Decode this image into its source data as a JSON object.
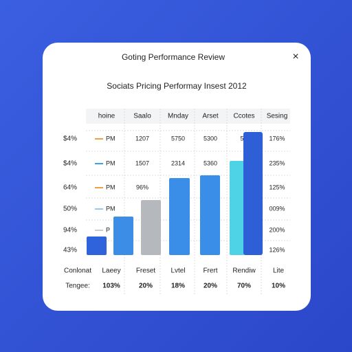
{
  "dialog": {
    "title": "Goting Performance Review",
    "close": "×",
    "subtitle": "Sociats Pricing Performay Insest 2012"
  },
  "table": {
    "header": [
      "hoine",
      "Saalo",
      "Mnday",
      "Arset",
      "Ccotes",
      "Sesing"
    ],
    "rows": [
      {
        "label": "$4%",
        "cells": [
          "PM",
          "1207",
          "5750",
          "5300",
          "5",
          "176%"
        ]
      },
      {
        "label": "$4%",
        "cells": [
          "PM",
          "1507",
          "2314",
          "5360",
          "",
          "235%"
        ]
      },
      {
        "label": "64%",
        "cells": [
          "PM",
          "96%",
          "",
          "",
          "",
          "125%"
        ]
      },
      {
        "label": "50%",
        "cells": [
          "PM",
          "",
          "",
          "",
          "",
          "009%"
        ]
      },
      {
        "label": "94%",
        "cells": [
          "P",
          "",
          "",
          "",
          "",
          "200%"
        ]
      },
      {
        "label": "43%",
        "cells": [
          "",
          "",
          "",
          "",
          "",
          "126%"
        ]
      }
    ]
  },
  "footer": {
    "labels": [
      "Conlonat",
      "Laeey",
      "Freset",
      "Lvtel",
      "Frert",
      "Rendiw",
      "Lite"
    ],
    "values": [
      "Tengee:",
      "103%",
      "20%",
      "18%",
      "20%",
      "70%",
      "10%"
    ]
  }
}
